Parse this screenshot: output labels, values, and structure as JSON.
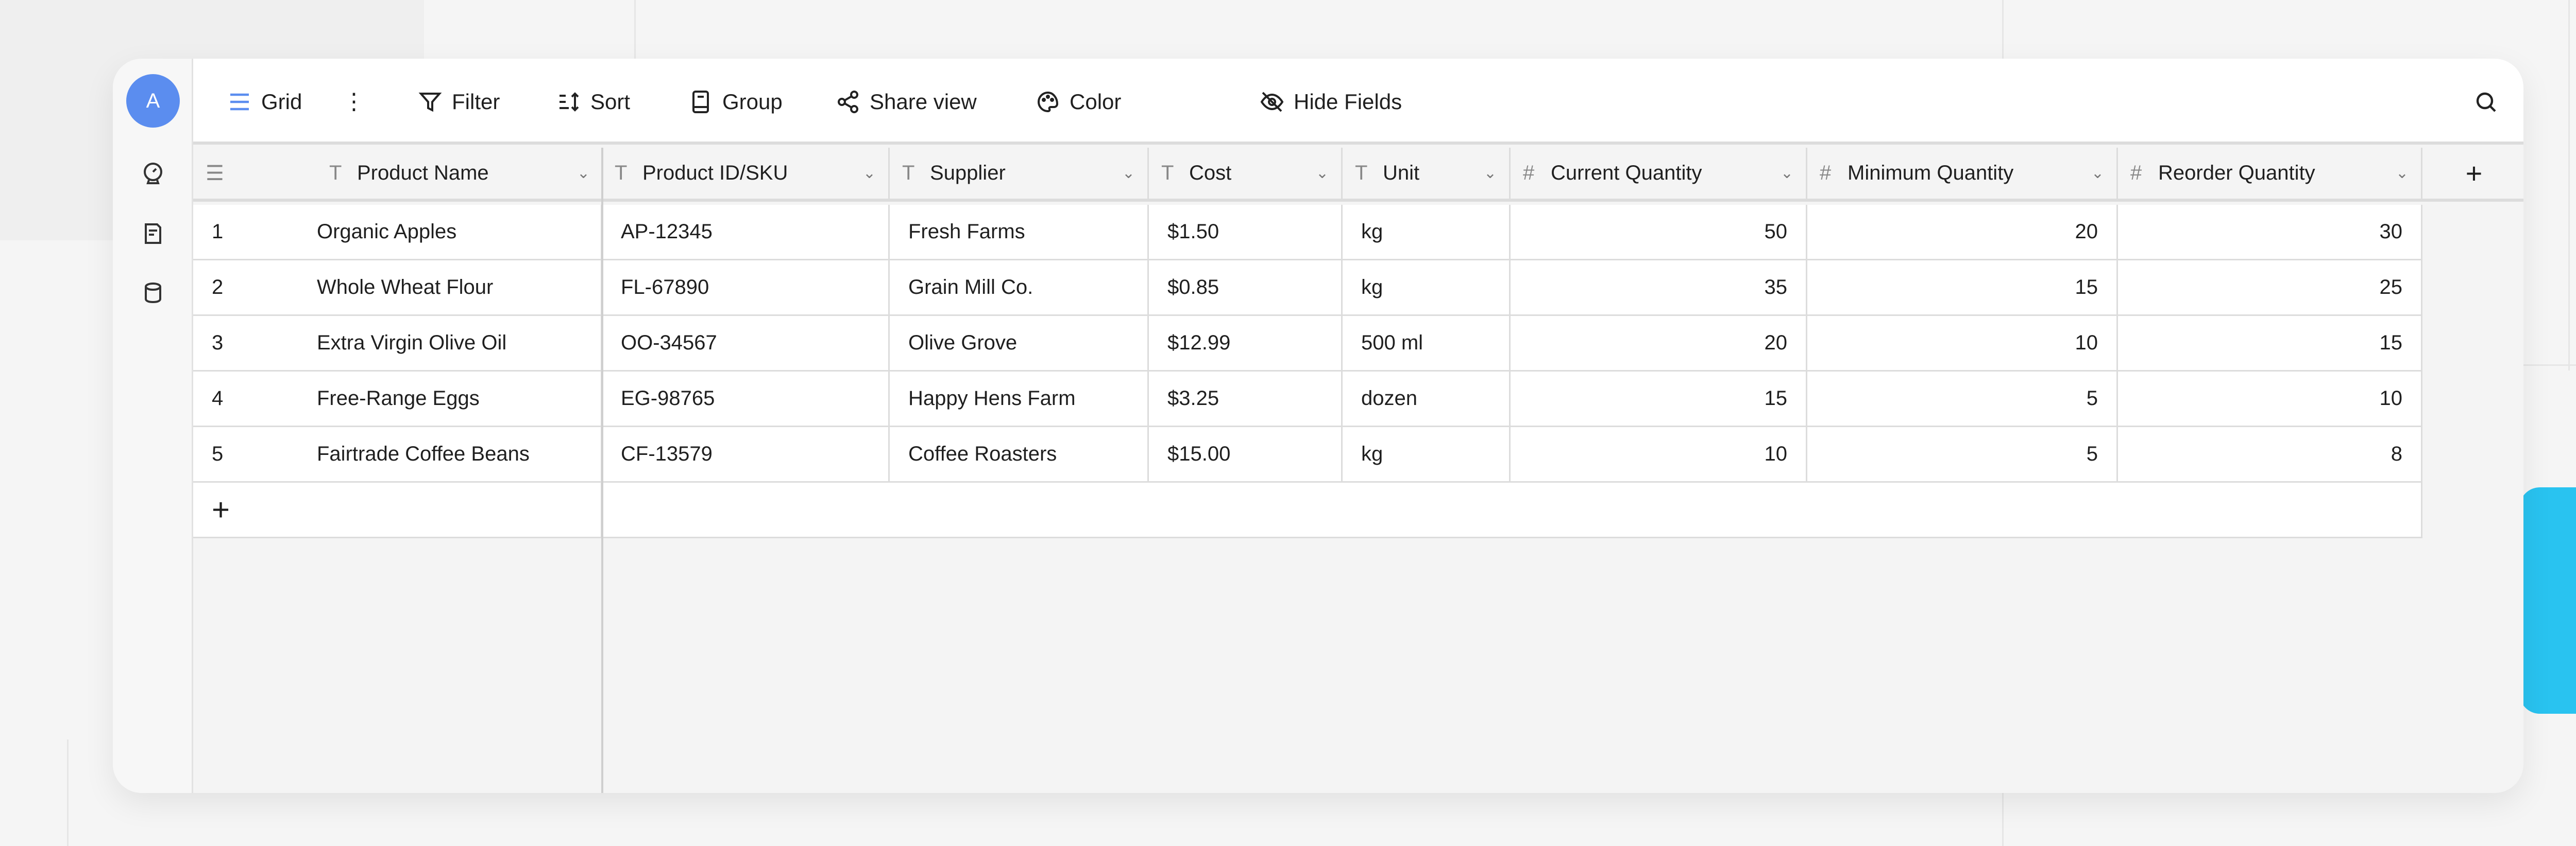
{
  "sidebar": {
    "avatar": "A",
    "icons": [
      "dashboard-icon",
      "notes-icon",
      "database-icon"
    ]
  },
  "toolbar": {
    "grid": "Grid",
    "filter": "Filter",
    "sort": "Sort",
    "group": "Group",
    "share": "Share view",
    "color": "Color",
    "hide": "Hide Fields"
  },
  "columns": [
    {
      "label": "Product Name",
      "type": "T"
    },
    {
      "label": "Product ID/SKU",
      "type": "T"
    },
    {
      "label": "Supplier",
      "type": "T"
    },
    {
      "label": "Cost",
      "type": "T"
    },
    {
      "label": "Unit",
      "type": "T"
    },
    {
      "label": "Current Quantity",
      "type": "#"
    },
    {
      "label": "Minimum Quantity",
      "type": "#"
    },
    {
      "label": "Reorder Quantity",
      "type": "#"
    }
  ],
  "rows": [
    [
      "1",
      "Organic Apples",
      "AP-12345",
      "Fresh Farms",
      "$1.50",
      "kg",
      "50",
      "20",
      "30"
    ],
    [
      "2",
      "Whole Wheat Flour",
      "FL-67890",
      "Grain Mill Co.",
      "$0.85",
      "kg",
      "35",
      "15",
      "25"
    ],
    [
      "3",
      "Extra Virgin Olive Oil",
      "OO-34567",
      "Olive Grove",
      "$12.99",
      "500 ml",
      "20",
      "10",
      "15"
    ],
    [
      "4",
      "Free-Range Eggs",
      "EG-98765",
      "Happy Hens Farm",
      "$3.25",
      "dozen",
      "15",
      "5",
      "10"
    ],
    [
      "5",
      "Fairtrade Coffee Beans",
      "CF-13579",
      "Coffee Roasters",
      "$15.00",
      "kg",
      "10",
      "5",
      "8"
    ]
  ],
  "colors": {
    "accent": "#5b8def",
    "cyan": "#29c3f0"
  }
}
